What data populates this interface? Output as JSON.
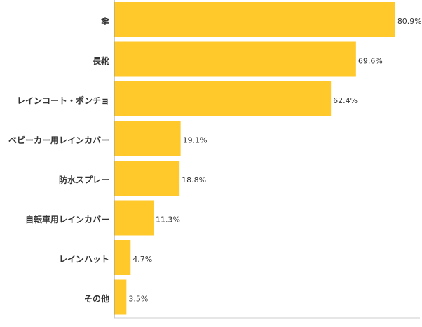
{
  "chart_data": {
    "type": "bar",
    "orientation": "horizontal",
    "color": "#ffc92b",
    "categories": [
      "傘",
      "長靴",
      "レインコート・ポンチョ",
      "ベビーカー用レインカバー",
      "防水スプレー",
      "自転車用レインカバー",
      "レインハット",
      "その他"
    ],
    "values": [
      80.9,
      69.6,
      62.4,
      19.1,
      18.8,
      11.3,
      4.7,
      3.5
    ],
    "value_labels": [
      "80.9%",
      "69.6%",
      "62.4%",
      "19.1%",
      "18.8%",
      "11.3%",
      "4.7%",
      "3.5%"
    ],
    "xlim": [
      0,
      88
    ]
  }
}
